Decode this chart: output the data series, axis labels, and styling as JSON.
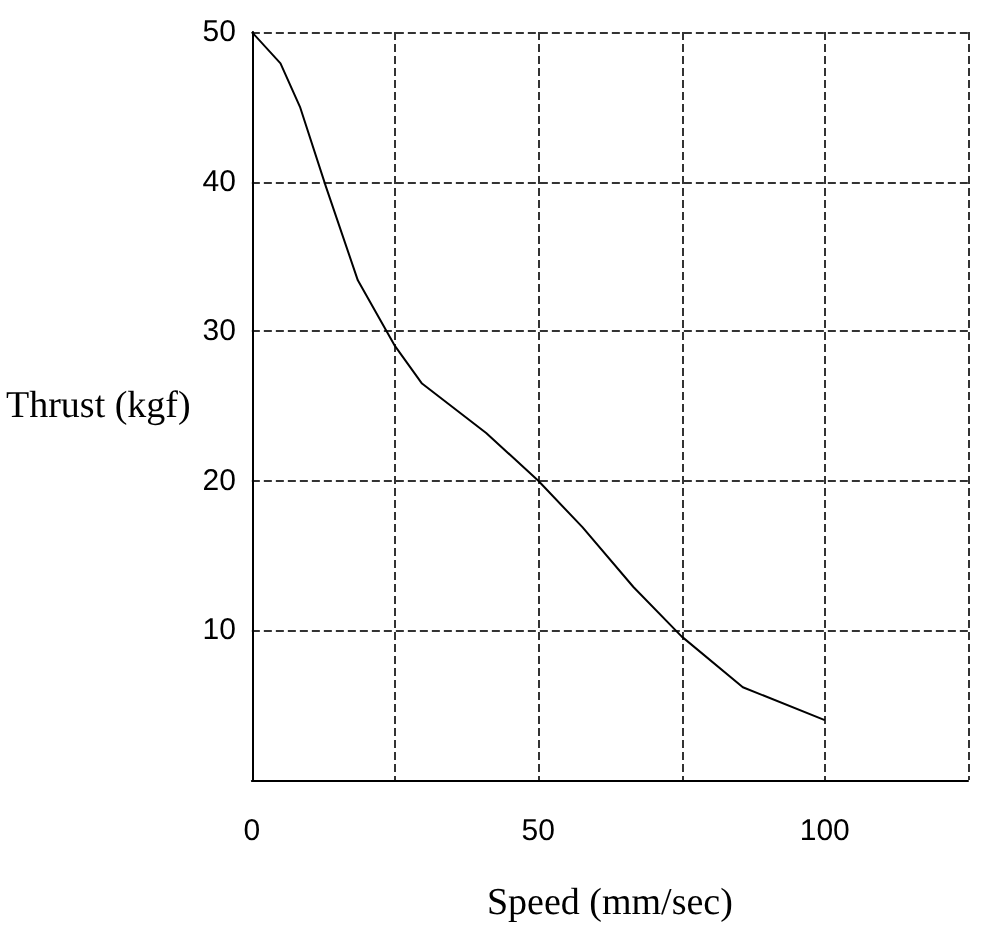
{
  "chart_data": {
    "type": "line",
    "xlabel": "Speed (mm/sec)",
    "ylabel": "Thrust (kgf)",
    "x": [
      0,
      5,
      8.4,
      12.9,
      18.5,
      25,
      29.7,
      40.9,
      50,
      57.7,
      66.6,
      75,
      85.7,
      100
    ],
    "series": [
      {
        "color": "#000000",
        "values": [
          50,
          47.9,
          45,
          39.7,
          33.4,
          29,
          26.5,
          23.2,
          20,
          16.9,
          12.9,
          9.6,
          6.2,
          4
        ]
      }
    ],
    "xlim": [
      0,
      125
    ],
    "xticks": [
      0,
      {
        "value": 25,
        "label": null
      },
      50,
      {
        "value": 75,
        "label": null
      },
      100,
      {
        "value": 125,
        "label": null
      }
    ],
    "ylim": [
      0,
      50
    ],
    "yticks": [
      {
        "value": 0,
        "label": null
      },
      10,
      20,
      30,
      40,
      50
    ],
    "grid": true,
    "marker": "none",
    "line_style": "solid"
  }
}
